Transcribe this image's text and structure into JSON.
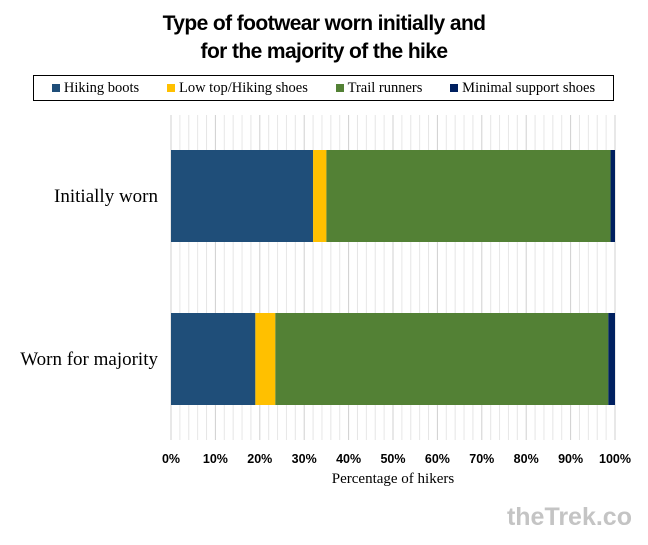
{
  "chart_data": {
    "type": "bar",
    "orientation": "horizontal",
    "stacked": true,
    "title_lines": [
      "Type of footwear worn initially and",
      "for the majority of the hike"
    ],
    "categories": [
      "Initially worn",
      "Worn for majority"
    ],
    "series": [
      {
        "name": "Hiking boots",
        "color": "#1f4e79",
        "values": [
          32,
          19
        ]
      },
      {
        "name": "Low top/Hiking shoes",
        "color": "#ffc000",
        "values": [
          3,
          4.5
        ]
      },
      {
        "name": "Trail runners",
        "color": "#538135",
        "values": [
          64,
          75
        ]
      },
      {
        "name": "Minimal support shoes",
        "color": "#002060",
        "values": [
          1,
          1.5
        ]
      }
    ],
    "xlabel": "Percentage of hikers",
    "ylabel": "",
    "xlim": [
      0,
      100
    ],
    "xticks": [
      "0%",
      "10%",
      "20%",
      "30%",
      "40%",
      "50%",
      "60%",
      "70%",
      "80%",
      "90%",
      "100%"
    ],
    "grid": true,
    "legend_position": "top"
  },
  "watermark": "theTrek.co"
}
